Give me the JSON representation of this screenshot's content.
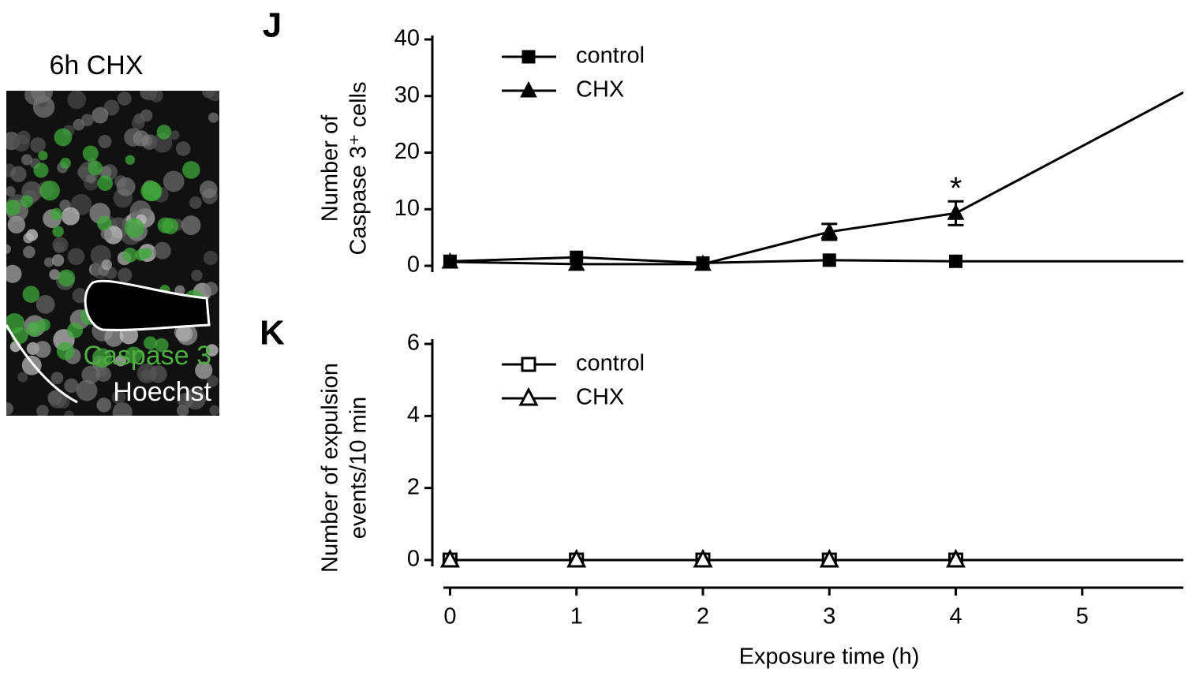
{
  "image_panel": {
    "title": "6h CHX",
    "labels": [
      "Caspase 3",
      "Hoechst"
    ]
  },
  "chart_data": [
    {
      "type": "line",
      "panel_label": "J",
      "ylabel": [
        "Number of",
        "Caspase 3⁺ cells"
      ],
      "xlim": [
        -0.14,
        5.8
      ],
      "ylim": [
        0,
        40
      ],
      "yticks": [
        0,
        10,
        20,
        30,
        40
      ],
      "legend": "upper left",
      "color": "#000000",
      "series": [
        {
          "name": "control",
          "marker": "square",
          "filled": true,
          "x": [
            0,
            1,
            2,
            3,
            4,
            6
          ],
          "values": [
            0.8,
            1.5,
            0.5,
            1.0,
            0.8,
            0.8
          ]
        },
        {
          "name": "CHX",
          "marker": "triangle",
          "filled": true,
          "x": [
            0,
            1,
            2,
            3,
            4,
            6
          ],
          "values": [
            0.7,
            0.3,
            0.3,
            6.0,
            9.3,
            33
          ],
          "errors": [
            null,
            null,
            null,
            1.4,
            2.1,
            null
          ]
        }
      ],
      "annotations": [
        {
          "text": "*",
          "x": 4
        }
      ]
    },
    {
      "type": "line",
      "panel_label": "K",
      "ylabel": [
        "Number of expulsion",
        "events/10 min"
      ],
      "xlabel": "Exposure time (h)",
      "xlim": [
        -0.14,
        5.8
      ],
      "xticks": [
        0,
        1,
        2,
        3,
        4,
        5
      ],
      "ylim": [
        0,
        6
      ],
      "yticks": [
        0,
        2,
        4,
        6
      ],
      "legend": "upper left",
      "color": "#000000",
      "series": [
        {
          "name": "control",
          "marker": "square",
          "filled": false,
          "x": [
            0,
            1,
            2,
            3,
            4,
            6
          ],
          "values": [
            0,
            0,
            0,
            0,
            0,
            0
          ]
        },
        {
          "name": "CHX",
          "marker": "triangle",
          "filled": false,
          "x": [
            0,
            1,
            2,
            3,
            4,
            6
          ],
          "values": [
            0,
            0,
            0,
            0,
            0,
            0
          ]
        }
      ]
    }
  ]
}
